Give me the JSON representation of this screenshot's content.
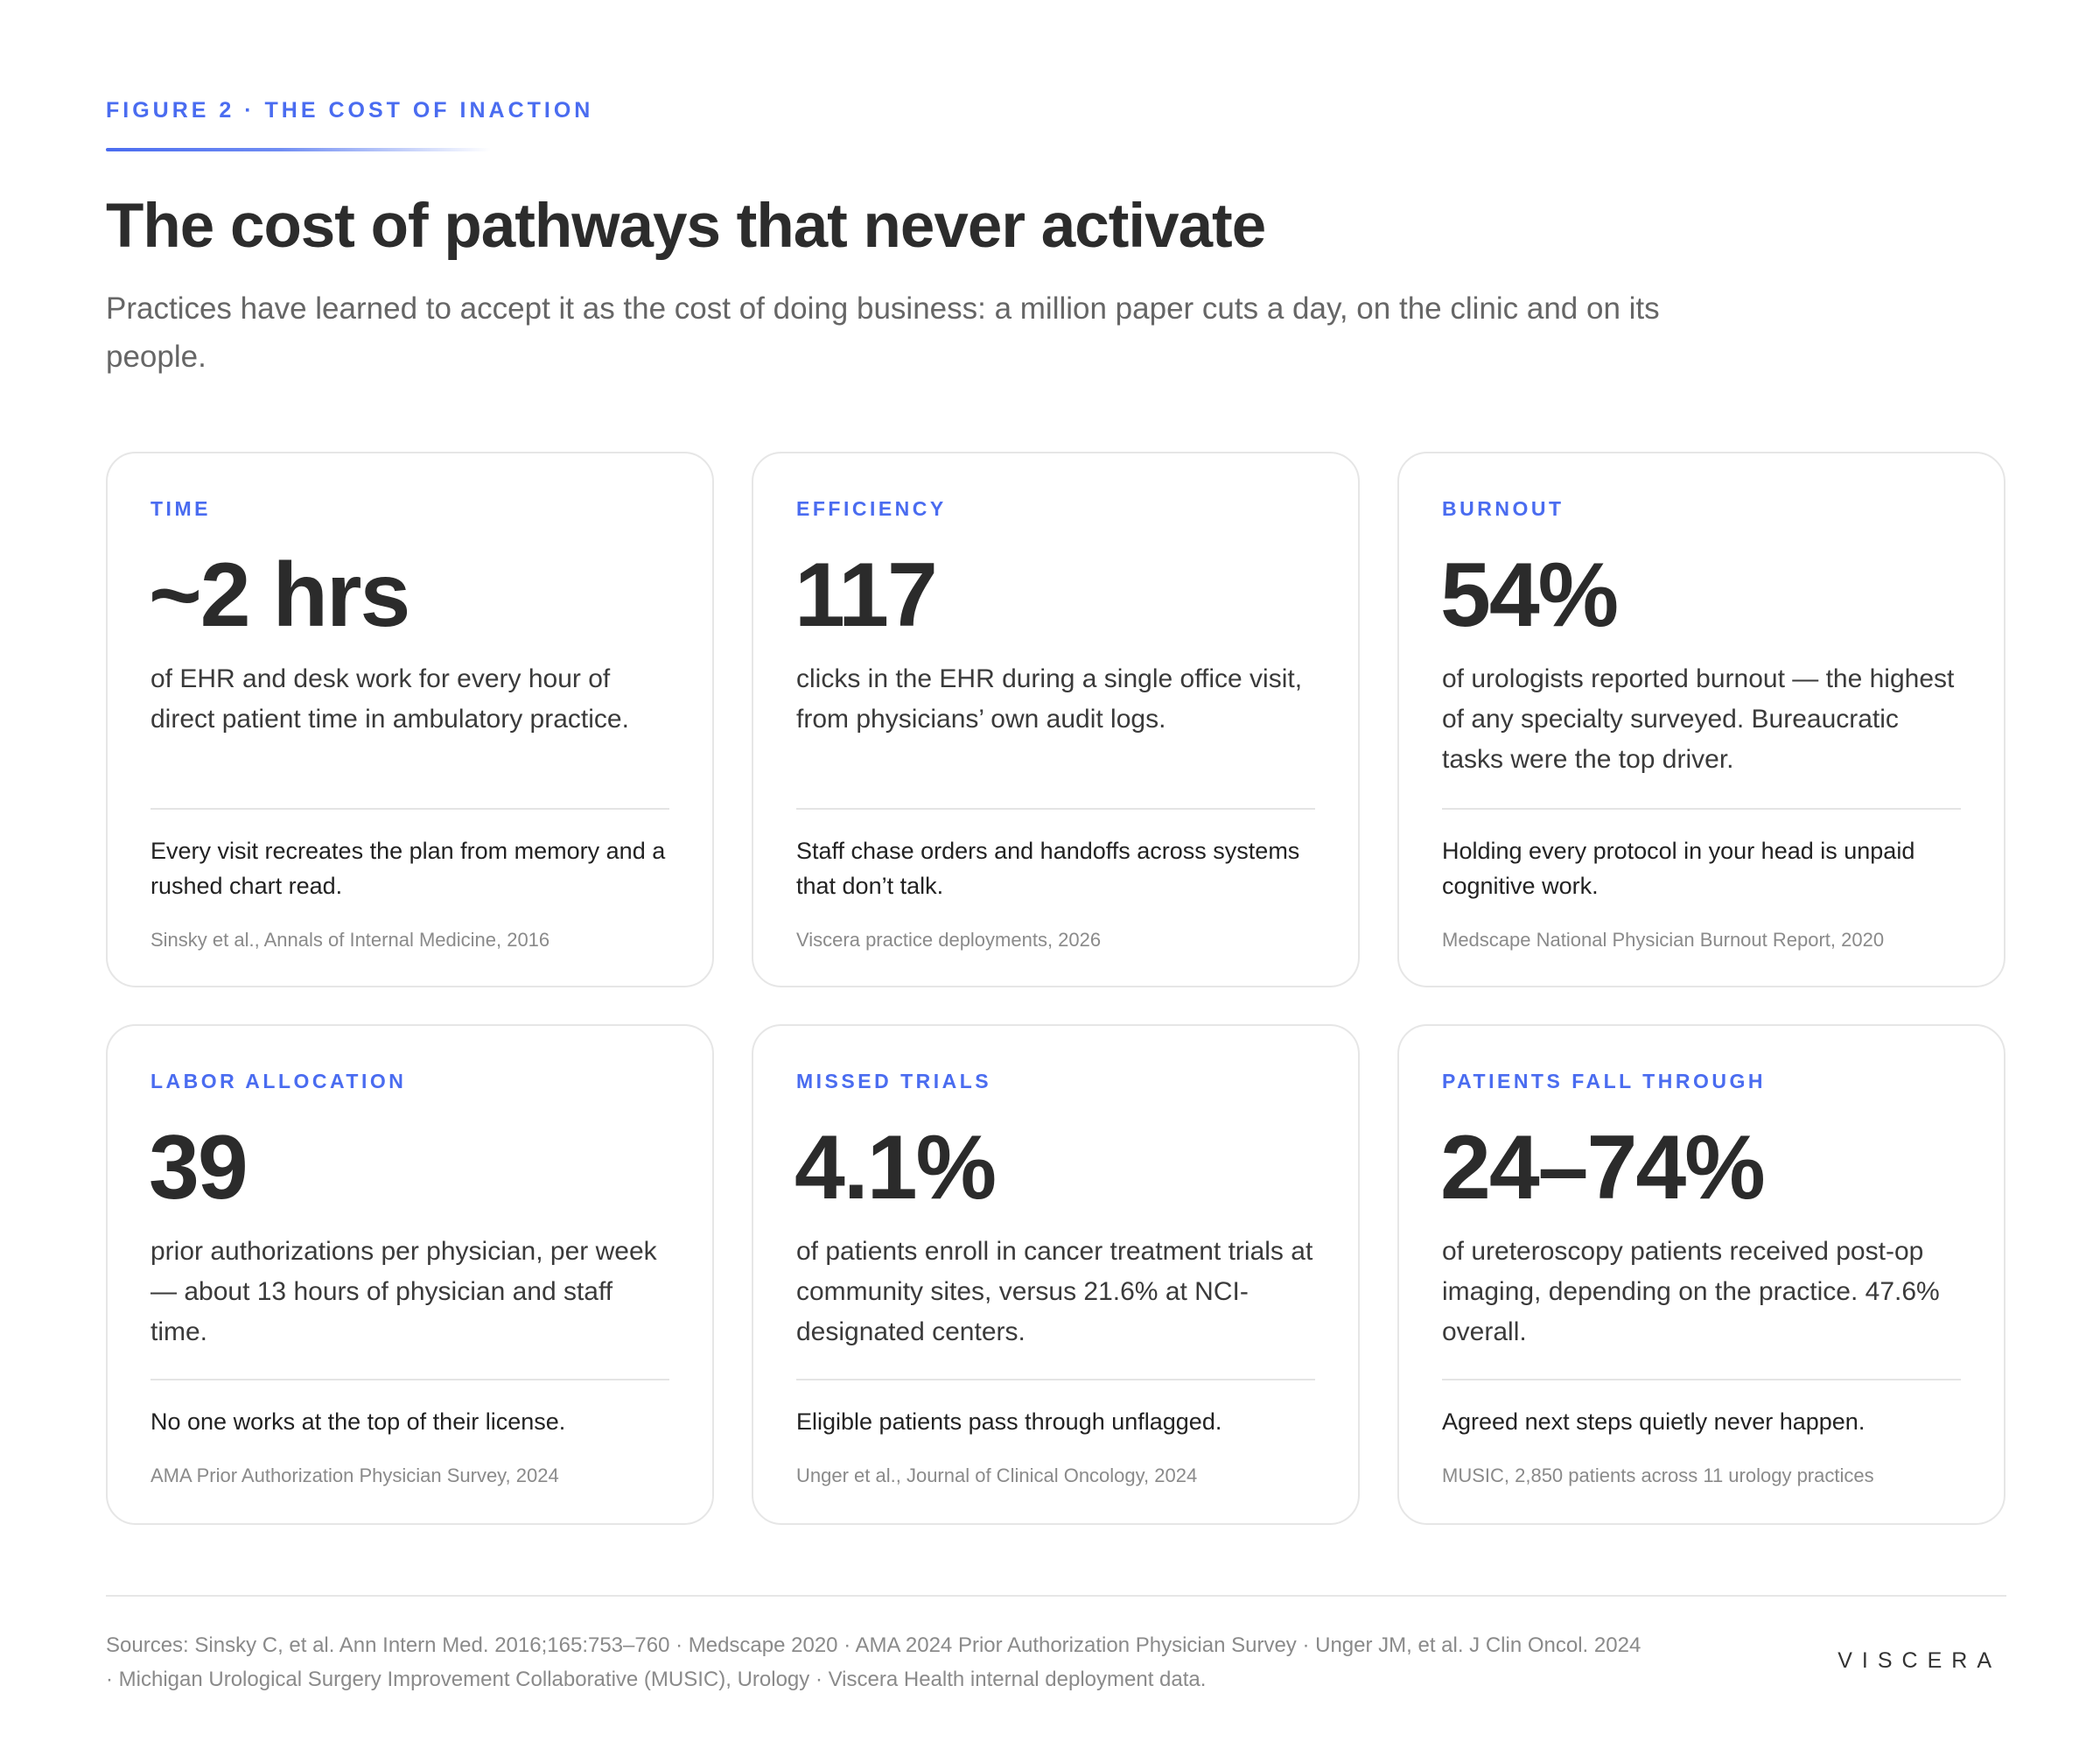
{
  "header": {
    "eyebrow": "FIGURE 2 · THE COST OF INACTION",
    "title": "The cost of pathways that never activate",
    "subtitle": "Practices have learned to accept it as the cost of doing business: a million paper cuts a day, on the clinic and on its people."
  },
  "cards": [
    {
      "label": "TIME",
      "metric": "~2 hrs",
      "description": "of EHR and desk work for every hour of direct patient time in ambulatory practice.",
      "impact": "Every visit recreates the plan from memory and a rushed chart read.",
      "source": "Sinsky et al., Annals of Internal Medicine, 2016"
    },
    {
      "label": "EFFICIENCY",
      "metric": "117",
      "description": "clicks in the EHR during a single office visit, from physicians’ own audit logs.",
      "impact": "Staff chase orders and handoffs across systems that don’t talk.",
      "source": "Viscera practice deployments, 2026"
    },
    {
      "label": "BURNOUT",
      "metric": "54%",
      "description": "of urologists reported burnout — the highest of any specialty surveyed. Bureaucratic tasks were the top driver.",
      "impact": "Holding every protocol in your head is unpaid cognitive work.",
      "source": "Medscape National Physician Burnout Report, 2020"
    },
    {
      "label": "LABOR ALLOCATION",
      "metric": "39",
      "description": "prior authorizations per physician, per week — about 13 hours of physician and staff time.",
      "impact": "No one works at the top of their license.",
      "source": "AMA Prior Authorization Physician Survey, 2024"
    },
    {
      "label": "MISSED TRIALS",
      "metric": "4.1%",
      "description": "of patients enroll in cancer treatment trials at community sites, versus 21.6% at NCI-designated centers.",
      "impact": "Eligible patients pass through unflagged.",
      "source": "Unger et al., Journal of Clinical Oncology, 2024"
    },
    {
      "label": "PATIENTS FALL THROUGH",
      "metric": "24–74%",
      "description": "of ureteroscopy patients received post-op imaging, depending on the practice. 47.6% overall.",
      "impact": "Agreed next steps quietly never happen.",
      "source": "MUSIC, 2,850 patients across 11 urology practices"
    }
  ],
  "footer": {
    "sources": "Sources: Sinsky C, et al. Ann Intern Med. 2016;165:753–760 · Medscape 2020 · AMA 2024 Prior Authorization Physician Survey · Unger JM, et al. J Clin Oncol. 2024 · Michigan Urological Surgery Improvement Collaborative (MUSIC), Urology · Viscera Health internal deployment data.",
    "brand": "VISCERA"
  },
  "colors": {
    "accent": "#4a6cf0",
    "heading": "#2c2c2c",
    "body": "#3a3a3a",
    "muted": "#8a8a8a",
    "border": "#e6e6e6"
  }
}
